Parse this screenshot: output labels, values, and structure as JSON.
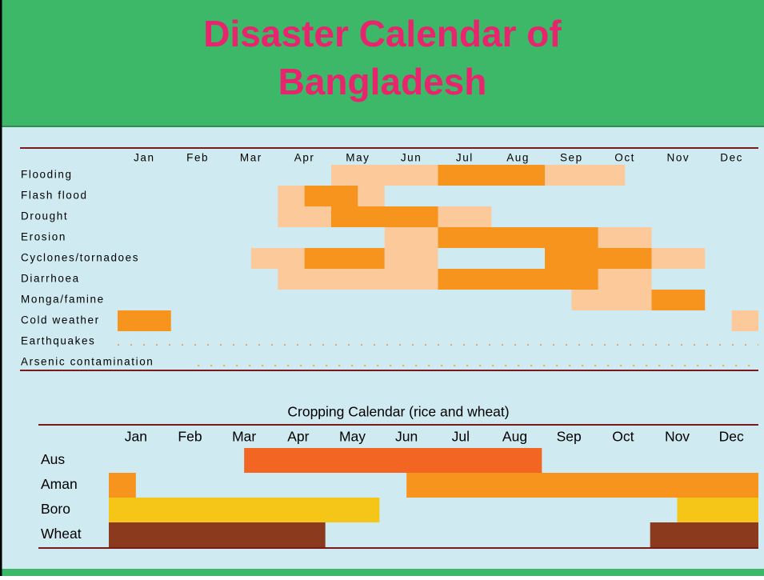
{
  "title_lines": [
    "Disaster Calendar of",
    "Bangladesh"
  ],
  "disaster_calendar": {
    "months": [
      "Jan",
      "Feb",
      "Mar",
      "Apr",
      "May",
      "Jun",
      "Jul",
      "Aug",
      "Sep",
      "Oct",
      "Nov",
      "Dec"
    ],
    "rows": [
      {
        "label": "Flooding",
        "segments": [
          {
            "start": 4,
            "end": 6,
            "color": "#fbc99a"
          },
          {
            "start": 6,
            "end": 8,
            "color": "#f7941d"
          },
          {
            "start": 8,
            "end": 9.5,
            "color": "#fbc99a"
          }
        ]
      },
      {
        "label": "Flash flood",
        "segments": [
          {
            "start": 3,
            "end": 3.5,
            "color": "#fbc99a"
          },
          {
            "start": 3.5,
            "end": 4.5,
            "color": "#f7941d"
          },
          {
            "start": 4.5,
            "end": 5,
            "color": "#fbc99a"
          }
        ]
      },
      {
        "label": "Drought",
        "segments": [
          {
            "start": 3,
            "end": 4,
            "color": "#fbc99a"
          },
          {
            "start": 4,
            "end": 6,
            "color": "#f7941d"
          },
          {
            "start": 6,
            "end": 7,
            "color": "#fbc99a"
          }
        ]
      },
      {
        "label": "Erosion",
        "segments": [
          {
            "start": 5,
            "end": 6,
            "color": "#fbc99a"
          },
          {
            "start": 6,
            "end": 9,
            "color": "#f7941d"
          },
          {
            "start": 9,
            "end": 10,
            "color": "#fbc99a"
          }
        ]
      },
      {
        "label": "Cyclones/tornadoes",
        "segments": [
          {
            "start": 2.5,
            "end": 3.5,
            "color": "#fbc99a"
          },
          {
            "start": 3.5,
            "end": 5,
            "color": "#f7941d"
          },
          {
            "start": 5,
            "end": 6,
            "color": "#fbc99a"
          },
          {
            "start": 8,
            "end": 10,
            "color": "#f7941d"
          },
          {
            "start": 10,
            "end": 11,
            "color": "#fbc99a"
          }
        ]
      },
      {
        "label": "Diarrhoea",
        "segments": [
          {
            "start": 3,
            "end": 6,
            "color": "#fbc99a"
          },
          {
            "start": 6,
            "end": 9,
            "color": "#f7941d"
          },
          {
            "start": 9,
            "end": 10,
            "color": "#fbc99a"
          }
        ]
      },
      {
        "label": "Monga/famine",
        "segments": [
          {
            "start": 8.5,
            "end": 10,
            "color": "#fbc99a"
          },
          {
            "start": 10,
            "end": 11,
            "color": "#f7941d"
          }
        ]
      },
      {
        "label": "Cold weather",
        "segments": [
          {
            "start": 0,
            "end": 1,
            "color": "#f7941d"
          },
          {
            "start": 11.5,
            "end": 12,
            "color": "#fbc99a"
          }
        ]
      },
      {
        "label": "Earthquakes",
        "segments": [
          {
            "start": 0,
            "end": 12,
            "color": "#f7941d",
            "dotted": true
          }
        ]
      },
      {
        "label": "Arsenic contamination",
        "segments": [
          {
            "start": 1.5,
            "end": 12,
            "color": "#f7941d",
            "dotted": true
          }
        ]
      }
    ]
  },
  "cropping_calendar": {
    "title": "Cropping Calendar (rice and wheat)",
    "months": [
      "Jan",
      "Feb",
      "Mar",
      "Apr",
      "May",
      "Jun",
      "Jul",
      "Aug",
      "Sep",
      "Oct",
      "Nov",
      "Dec"
    ],
    "rows": [
      {
        "label": "Aus",
        "segments": [
          {
            "start": 2.5,
            "end": 8,
            "color": "#f26522"
          }
        ]
      },
      {
        "label": "Aman",
        "segments": [
          {
            "start": 0,
            "end": 0.5,
            "color": "#f7941d"
          },
          {
            "start": 5.5,
            "end": 12,
            "color": "#f7941d"
          }
        ]
      },
      {
        "label": "Boro",
        "segments": [
          {
            "start": 0,
            "end": 5,
            "color": "#f5c518"
          },
          {
            "start": 10.5,
            "end": 12,
            "color": "#f5c518"
          }
        ]
      },
      {
        "label": "Wheat",
        "segments": [
          {
            "start": 0,
            "end": 4,
            "color": "#8b3a1e"
          },
          {
            "start": 10,
            "end": 12,
            "color": "#8b3a1e"
          }
        ]
      }
    ]
  }
}
